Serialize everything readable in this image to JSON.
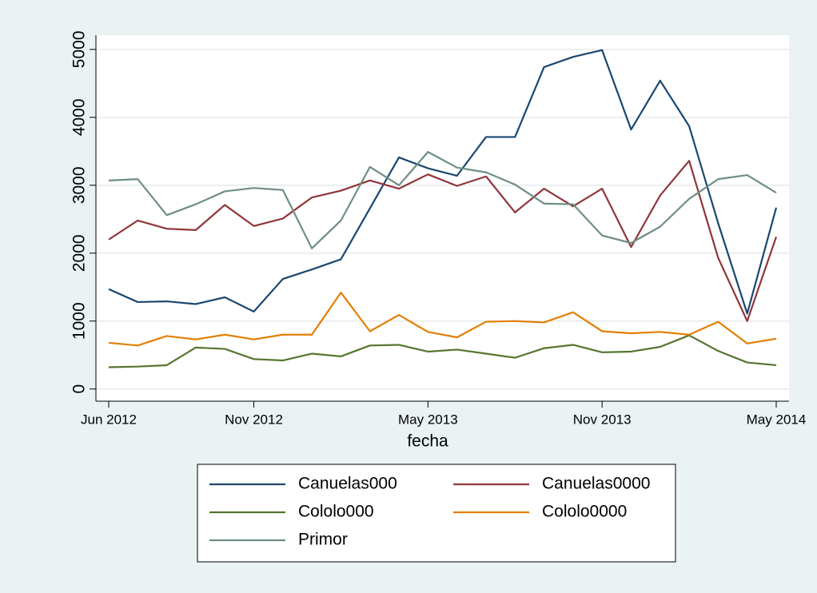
{
  "chart_data": {
    "type": "line",
    "x_label": "fecha",
    "x": [
      "2012-06",
      "2012-07",
      "2012-08",
      "2012-09",
      "2012-10",
      "2012-11",
      "2012-12",
      "2013-01",
      "2013-02",
      "2013-03",
      "2013-04",
      "2013-05",
      "2013-06",
      "2013-07",
      "2013-08",
      "2013-09",
      "2013-10",
      "2013-11",
      "2013-12",
      "2014-01",
      "2014-02",
      "2014-03",
      "2014-04",
      "2014-05"
    ],
    "xlim": [
      "2012-06",
      "2014-05"
    ],
    "xticks": [
      {
        "value": "2012-06",
        "label": "Jun 2012"
      },
      {
        "value": "2012-11",
        "label": "Nov 2012"
      },
      {
        "value": "2013-05",
        "label": "May 2013"
      },
      {
        "value": "2013-11",
        "label": "Nov 2013"
      },
      {
        "value": "2014-05",
        "label": "May 2014"
      }
    ],
    "ylim": [
      -180,
      5210
    ],
    "yticks": [
      0,
      1000,
      2000,
      3000,
      4000,
      5000
    ],
    "grid": true,
    "series": [
      {
        "name": "Canuelas000",
        "color": "#1a476f",
        "values": [
          1470,
          1280,
          1290,
          1250,
          1350,
          1140,
          1620,
          1760,
          1910,
          2660,
          3410,
          3250,
          3140,
          3710,
          3710,
          4740,
          4890,
          4990,
          3820,
          4540,
          3870,
          2440,
          1110,
          2670
        ]
      },
      {
        "name": "Canuelas0000",
        "color": "#90353b",
        "values": [
          2200,
          2480,
          2360,
          2340,
          2710,
          2400,
          2510,
          2820,
          2920,
          3070,
          2950,
          3160,
          2990,
          3130,
          2600,
          2950,
          2690,
          2950,
          2090,
          2850,
          3360,
          1930,
          1000,
          2240
        ]
      },
      {
        "name": "Cololo000",
        "color": "#55752f",
        "values": [
          320,
          330,
          350,
          610,
          590,
          440,
          420,
          520,
          480,
          640,
          650,
          550,
          580,
          520,
          460,
          600,
          650,
          540,
          550,
          620,
          790,
          560,
          390,
          350
        ]
      },
      {
        "name": "Cololo0000",
        "color": "#e37e00",
        "values": [
          680,
          640,
          780,
          730,
          800,
          730,
          800,
          800,
          1420,
          850,
          1090,
          840,
          760,
          990,
          1000,
          980,
          1130,
          850,
          820,
          840,
          800,
          990,
          670,
          740
        ]
      },
      {
        "name": "Primor",
        "color": "#6e8e84",
        "values": [
          3070,
          3090,
          2560,
          2720,
          2910,
          2960,
          2930,
          2070,
          2480,
          3270,
          3000,
          3490,
          3260,
          3190,
          3010,
          2730,
          2720,
          2260,
          2150,
          2390,
          2800,
          3090,
          3150,
          2890
        ]
      }
    ]
  }
}
